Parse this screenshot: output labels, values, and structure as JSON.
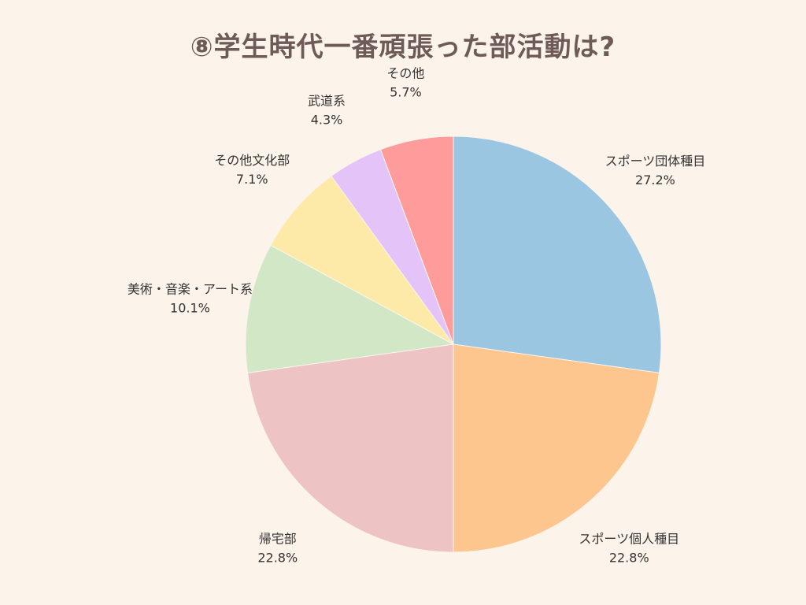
{
  "chart_data": {
    "type": "pie",
    "title": "⑧学生時代一番頑張った部活動は?",
    "start_angle_deg": 0,
    "direction": "clockwise",
    "slices": [
      {
        "label": "スポーツ団体種目",
        "value": 27.2,
        "value_label": "27.2%",
        "color": "#9ac6e2"
      },
      {
        "label": "スポーツ個人種目",
        "value": 22.8,
        "value_label": "22.8%",
        "color": "#fec68f"
      },
      {
        "label": "帰宅部",
        "value": 22.8,
        "value_label": "22.8%",
        "color": "#edc3c3"
      },
      {
        "label": "美術・音楽・アート系",
        "value": 10.1,
        "value_label": "10.1%",
        "color": "#d1e7c5"
      },
      {
        "label": "その他文化部",
        "value": 7.1,
        "value_label": "7.1%",
        "color": "#feeaa8"
      },
      {
        "label": "武道系",
        "value": 4.3,
        "value_label": "4.3%",
        "color": "#e3c3f8"
      },
      {
        "label": "その他",
        "value": 5.7,
        "value_label": "5.7%",
        "color": "#fe9c9c"
      }
    ]
  }
}
